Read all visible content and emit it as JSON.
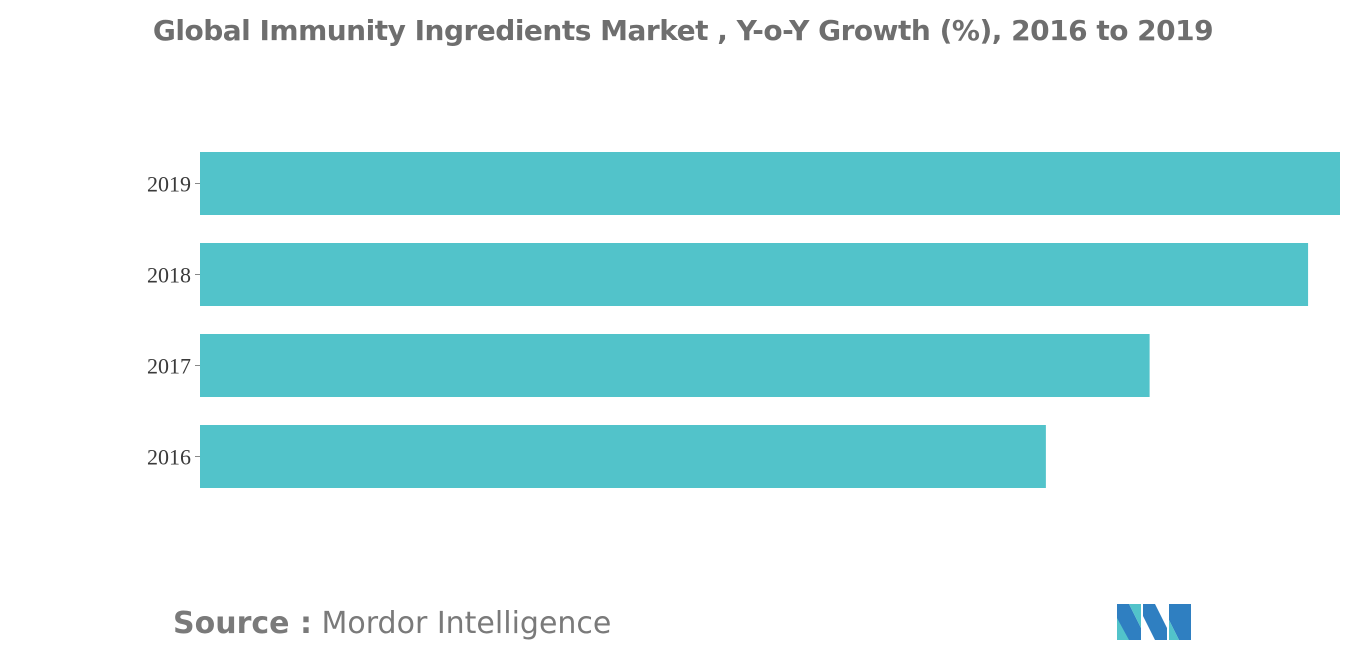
{
  "chart_data": {
    "type": "bar",
    "orientation": "horizontal",
    "title": "Global Immunity Ingredients Market , Y-o-Y Growth (%), 2016 to 2019",
    "categories": [
      "2019",
      "2018",
      "2017",
      "2016"
    ],
    "values": [
      100,
      97.2,
      83.3,
      74.2
    ],
    "xlim": [
      0,
      100
    ],
    "xlabel": "",
    "ylabel": "",
    "grid": false,
    "legend": false,
    "bar_color": "#52c3ca"
  },
  "source": {
    "label": "Source :",
    "text": "Mordor Intelligence"
  },
  "logo": {
    "icon": "mordor-intelligence-logo",
    "colors": [
      "#2f7fc1",
      "#52c3ca"
    ]
  }
}
